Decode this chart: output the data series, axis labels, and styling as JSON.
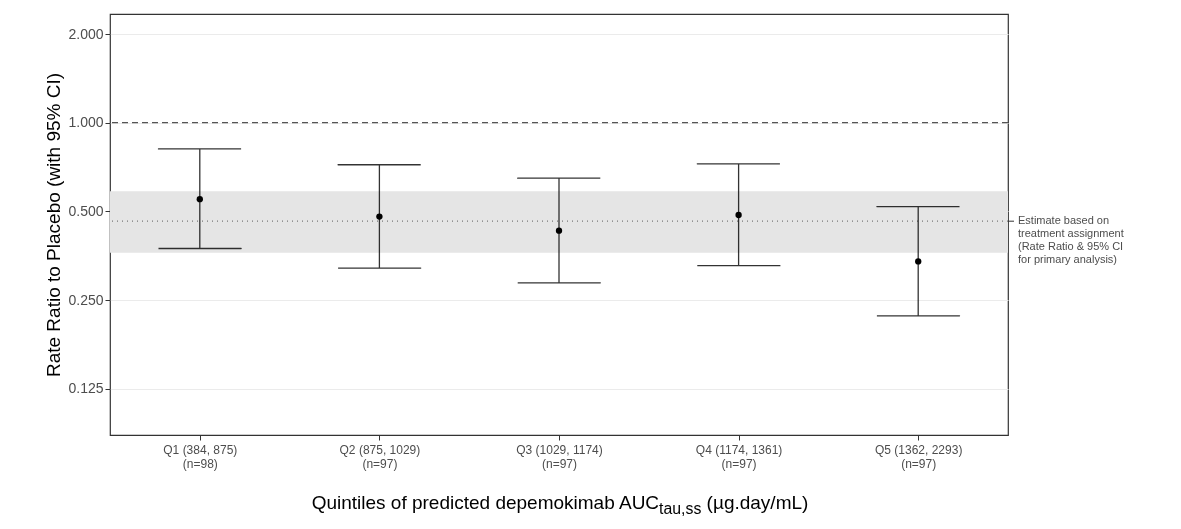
{
  "chart_data": {
    "type": "scatter",
    "xlabel": "Quintiles of predicted depemokimab AUC$_{tau,ss}$ (µg.day/mL)",
    "ylabel": "Rate Ratio to Placebo (with 95% CI)",
    "categories": [
      "Q1 (384, 875)\n(n=98)",
      "Q2 (875, 1029)\n(n=97)",
      "Q3 (1029, 1174)\n(n=97)",
      "Q4 (1174, 1361)\n(n=97)",
      "Q5 (1362, 2293)\n(n=97)"
    ],
    "series": [
      {
        "color": "#000000",
        "values": [
          0.55,
          0.48,
          0.43,
          0.486,
          0.338
        ],
        "errors": [
          [
            0.374,
            0.815
          ],
          [
            0.321,
            0.72
          ],
          [
            0.286,
            0.648
          ],
          [
            0.327,
            0.725
          ],
          [
            0.221,
            0.519
          ]
        ]
      }
    ],
    "log": "y",
    "ylim": [
      0.087,
      2.34
    ],
    "yticks": [
      {
        "value": 0.125,
        "label": "0.125"
      },
      {
        "value": 0.25,
        "label": "0.250"
      },
      {
        "value": 0.5,
        "label": "0.500"
      },
      {
        "value": 1,
        "label": "1.000"
      },
      {
        "value": 2,
        "label": "2.000"
      }
    ],
    "grid": "y",
    "marker": "circle",
    "ref_lines": [
      {
        "axis": "y",
        "value": 1,
        "line_style": "dashed",
        "color": "#555555"
      },
      {
        "axis": "y",
        "value": 0.463,
        "line_style": "dotted",
        "color": "#777777",
        "label": "Estimate based on\ntreatment assignment\n(Rate Ratio & 95% CI\nfor primary analysis)"
      }
    ],
    "bands": [
      {
        "axis": "y",
        "from": 0.362,
        "to": 0.585,
        "color": "#e5e5e5"
      }
    ]
  }
}
